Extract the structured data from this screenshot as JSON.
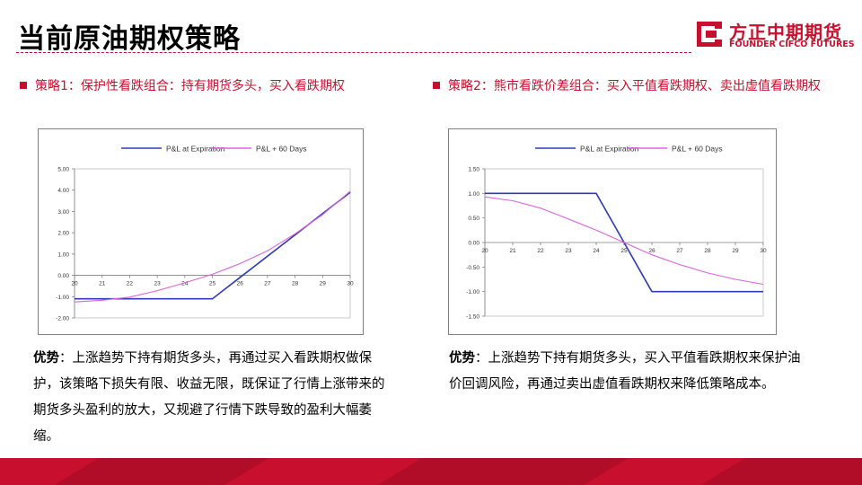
{
  "title": "当前原油期权策略",
  "logo": {
    "cn": "方正中期期货",
    "en": "FOUNDER CIFCO FUTURES"
  },
  "strategy1": {
    "heading": "策略1：保护性看跌组合：持有期货多头，买入看跌期权",
    "desc_lead": "优势",
    "desc_body": "：上涨趋势下持有期货多头，再通过买入看跌期权做保护，该策略下损失有限、收益无限，既保证了行情上涨带来的期货多头盈利的放大，又规避了行情下跌导致的盈利大幅萎缩。"
  },
  "strategy2": {
    "heading": "策略2：熊市看跌价差组合：买入平值看跌期权、卖出虚值看跌期权",
    "desc_lead": "优势",
    "desc_body": "：上涨趋势下持有期货多头，买入平值看跌期权来保护油价回调风险，再通过卖出虚值看跌期权来降低策略成本。"
  },
  "colors": {
    "expiration": "#2e3ab8",
    "days60": "#e060e0",
    "accent": "#c8102e"
  },
  "chart_data": [
    {
      "type": "line",
      "title": "",
      "xlabel": "",
      "ylabel": "",
      "x": [
        20,
        21,
        22,
        23,
        24,
        25,
        26,
        27,
        28,
        29,
        30
      ],
      "xlim": [
        20,
        30
      ],
      "ylim": [
        -2,
        5
      ],
      "yticks": [
        "5.00",
        "4.00",
        "3.00",
        "2.00",
        "1.00",
        "0.00",
        "-1.00",
        "-2.00"
      ],
      "ytick_values": [
        5,
        4,
        3,
        2,
        1,
        0,
        -1,
        -2
      ],
      "xticks": [
        "20",
        "21",
        "22",
        "23",
        "24",
        "25",
        "26",
        "27",
        "28",
        "29",
        "30"
      ],
      "legend_position": "top",
      "series": [
        {
          "name": "P&L at Expiration",
          "color_key": "expiration",
          "points": [
            [
              20,
              -1.1
            ],
            [
              25,
              -1.1
            ],
            [
              30,
              3.9
            ]
          ]
        },
        {
          "name": "P&L + 60 Days",
          "color_key": "days60",
          "points": [
            [
              20,
              -1.25
            ],
            [
              21,
              -1.17
            ],
            [
              22,
              -1.02
            ],
            [
              23,
              -0.72
            ],
            [
              24,
              -0.35
            ],
            [
              25,
              0.05
            ],
            [
              26,
              0.55
            ],
            [
              27,
              1.15
            ],
            [
              28,
              1.95
            ],
            [
              29,
              2.85
            ],
            [
              30,
              3.95
            ]
          ]
        }
      ]
    },
    {
      "type": "line",
      "title": "",
      "xlabel": "",
      "ylabel": "",
      "x": [
        20,
        21,
        22,
        23,
        24,
        25,
        26,
        27,
        28,
        29,
        30
      ],
      "xlim": [
        20,
        30
      ],
      "ylim": [
        -1.5,
        1.5
      ],
      "yticks": [
        "1.50",
        "1.00",
        "0.50",
        "0.00",
        "-0.50",
        "-1.00",
        "-1.50"
      ],
      "ytick_values": [
        1.5,
        1.0,
        0.5,
        0.0,
        -0.5,
        -1.0,
        -1.5
      ],
      "xticks": [
        "20",
        "21",
        "22",
        "23",
        "24",
        "25",
        "26",
        "27",
        "28",
        "29",
        "30"
      ],
      "legend_position": "top",
      "series": [
        {
          "name": "P&L at Expiration",
          "color_key": "expiration",
          "points": [
            [
              20,
              1.0
            ],
            [
              24,
              1.0
            ],
            [
              26,
              -1.0
            ],
            [
              30,
              -1.0
            ]
          ]
        },
        {
          "name": "P&L + 60 Days",
          "color_key": "days60",
          "points": [
            [
              20,
              0.93
            ],
            [
              21,
              0.85
            ],
            [
              22,
              0.7
            ],
            [
              23,
              0.48
            ],
            [
              24,
              0.25
            ],
            [
              25,
              0.0
            ],
            [
              26,
              -0.25
            ],
            [
              27,
              -0.45
            ],
            [
              28,
              -0.62
            ],
            [
              29,
              -0.75
            ],
            [
              30,
              -0.85
            ]
          ]
        }
      ]
    }
  ]
}
